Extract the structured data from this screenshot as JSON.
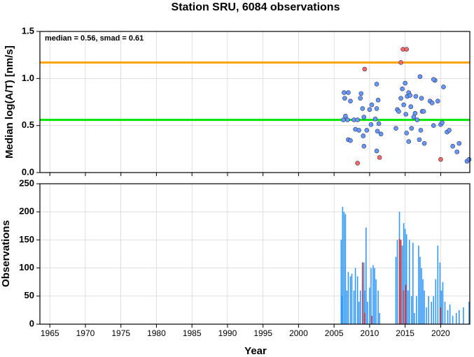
{
  "chart_data": [
    {
      "type": "scatter",
      "title": "Station SRU, 6084 observations",
      "ylabel": "Median log(A/T) [nm/s]",
      "annotation": "median = 0.56, smad = 0.61",
      "xlim": [
        1963.6,
        2024.1
      ],
      "ylim": [
        0,
        1.5
      ],
      "yticks": [
        {
          "value": 0,
          "label": "0.0"
        },
        0.5,
        {
          "value": 1,
          "label": "1.0"
        },
        1.5
      ],
      "grid": true,
      "hlines": [
        {
          "value": 1.17,
          "color": "#ffa500"
        },
        {
          "value": 0.56,
          "color": "#00e600"
        }
      ],
      "series": [
        {
          "color": "#6699ff",
          "x": [
            2006.4,
            2007.0,
            2006.5,
            2006.6,
            2006.3,
            2006.9,
            2007.3,
            2007.0,
            2007.3,
            2007.8,
            2008.0,
            2008.3,
            2008.5,
            2008.7,
            2008.8,
            2009.0,
            2009.2,
            2009.1,
            2009.2,
            2009.6,
            2010.0,
            2010.3,
            2010.2,
            2010.8,
            2011.0,
            2011.0,
            2011.1,
            2011.0,
            2011.2,
            2011.3,
            2011.6,
            2013.7,
            2013.9,
            2014.1,
            2014.4,
            2014.6,
            2014.8,
            2015.0,
            2015.1,
            2015.2,
            2015.3,
            2015.5,
            2015.5,
            2015.7,
            2015.8,
            2015.9,
            2016.2,
            2016.4,
            2016.5,
            2016.7,
            2017.0,
            2017.1,
            2017.2,
            2017.3,
            2017.4,
            2017.6,
            2017.7,
            2018.5,
            2018.8,
            2019.0,
            2019.2,
            2019.0,
            2019.6,
            2020.0,
            2020.2,
            2020.4,
            2020.9,
            2021.2,
            2021.7,
            2022.3,
            2022.6,
            2023.7,
            2024.0
          ],
          "values": [
            0.85,
            0.85,
            0.79,
            0.6,
            0.56,
            0.56,
            0.76,
            0.35,
            0.34,
            0.56,
            0.46,
            0.56,
            0.45,
            0.79,
            0.84,
            0.68,
            0.59,
            0.39,
            0.28,
            0.45,
            0.67,
            0.72,
            0.51,
            0.57,
            0.68,
            0.94,
            0.44,
            0.23,
            0.77,
            0.52,
            0.41,
            0.47,
            0.67,
            0.65,
            0.79,
            0.89,
            0.72,
            0.95,
            0.62,
            0.42,
            0.81,
            0.85,
            0.33,
            0.82,
            0.7,
            0.47,
            0.59,
            0.63,
            0.81,
            0.56,
            0.35,
            1.02,
            0.45,
            0.79,
            0.65,
            0.65,
            0.31,
            0.76,
            0.74,
            0.5,
            0.98,
            0.99,
            0.76,
            0.51,
            0.53,
            0.91,
            0.43,
            0.45,
            0.28,
            0.22,
            0.31,
            0.12,
            0.14
          ]
        },
        {
          "color": "#ff6666",
          "x": [
            2008.3,
            2009.3,
            2011.4,
            2014.4,
            2014.7,
            2015.2,
            2020.0
          ],
          "values": [
            0.1,
            1.1,
            0.16,
            1.17,
            1.31,
            1.31,
            0.14
          ]
        }
      ]
    },
    {
      "type": "bar",
      "ylabel": "Observations",
      "xlabel": "Year",
      "xlim": [
        1963.6,
        2024.1
      ],
      "ylim": [
        0,
        250
      ],
      "xticks": [
        1965,
        1970,
        1975,
        1980,
        1985,
        1990,
        1995,
        2000,
        2005,
        2010,
        2015,
        2020
      ],
      "yticks": [
        0,
        50,
        100,
        150,
        200,
        250
      ],
      "grid": true,
      "series": [
        {
          "color": "#3399ff",
          "x": [
            2006.0,
            2006.1,
            2006.2,
            2006.4,
            2006.6,
            2006.8,
            2007.0,
            2007.3,
            2007.5,
            2007.8,
            2008.0,
            2008.3,
            2008.5,
            2008.7,
            2009.0,
            2009.2,
            2009.3,
            2009.5,
            2009.7,
            2010.0,
            2010.2,
            2010.5,
            2010.7,
            2010.9,
            2011.2,
            2011.4,
            2013.7,
            2013.9,
            2014.2,
            2014.4,
            2014.6,
            2014.8,
            2015.0,
            2015.2,
            2015.4,
            2015.6,
            2015.9,
            2016.1,
            2016.3,
            2016.6,
            2016.9,
            2017.1,
            2017.3,
            2017.5,
            2017.7,
            2018.0,
            2018.3,
            2018.7,
            2019.0,
            2019.3,
            2019.6,
            2019.9,
            2020.1,
            2020.3,
            2020.6,
            2021.0,
            2021.3,
            2021.7,
            2022.2,
            2022.6,
            2023.2,
            2024.0
          ],
          "values": [
            150,
            50,
            209,
            200,
            196,
            60,
            93,
            85,
            90,
            60,
            100,
            85,
            40,
            60,
            80,
            110,
            60,
            172,
            40,
            65,
            100,
            105,
            100,
            80,
            60,
            20,
            120,
            150,
            200,
            150,
            140,
            180,
            170,
            160,
            60,
            150,
            50,
            145,
            20,
            50,
            140,
            120,
            100,
            80,
            60,
            30,
            50,
            40,
            50,
            80,
            140,
            110,
            60,
            75,
            40,
            25,
            35,
            15,
            20,
            25,
            30,
            40
          ]
        },
        {
          "color": "#cc3333",
          "x": [
            2009.0,
            2009.3,
            2010.3,
            2014.2,
            2014.4,
            2014.8,
            2015.1,
            2020.0
          ],
          "values": [
            110,
            20,
            15,
            152,
            150,
            60,
            70,
            30
          ]
        }
      ]
    }
  ]
}
